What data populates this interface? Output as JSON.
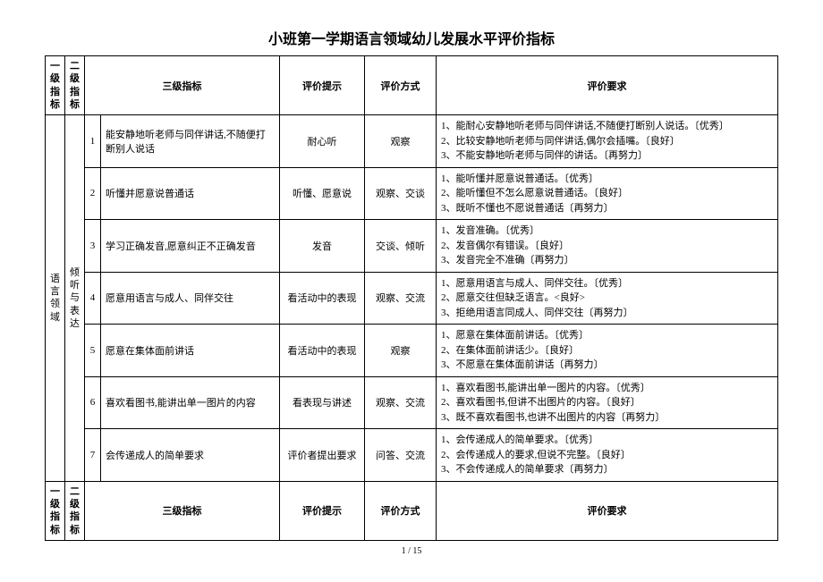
{
  "title": "小班第一学期语言领域幼儿发展水平评价指标",
  "header": {
    "l1": "一级指标",
    "l2": "二级指标",
    "l3": "三级指标",
    "hint": "评价提示",
    "method": "评价方式",
    "req": "评价要求"
  },
  "level1": "语言领域",
  "level2": "倾听与表达",
  "rows": [
    {
      "idx": "1",
      "l3": "能安静地听老师与同伴讲话,不随便打断别人说话",
      "hint": "耐心听",
      "method": "观察",
      "req": "1、能耐心安静地听老师与同伴讲话,不随便打断别人说话。〔优秀〕\n2、比较安静地听老师与同伴讲话,偶尔会插嘴。〔良好〕\n3、不能安静地听老师与同伴的讲话。〔再努力〕"
    },
    {
      "idx": "2",
      "l3": "听懂并愿意说普通话",
      "hint": "听懂、愿意说",
      "method": "观察、交谈",
      "req": "1、能听懂并愿意说普通话。〔优秀〕\n2、能听懂但不怎么愿意说普通话。〔良好〕\n3、既听不懂也不愿说普通话〔再努力〕"
    },
    {
      "idx": "3",
      "l3": "学习正确发音,愿意纠正不正确发音",
      "hint": "发音",
      "method": "交谈、倾听",
      "req": "1、发音准确。〔优秀〕\n2、发音偶尔有错误。〔良好〕\n3、发音完全不准确〔再努力〕"
    },
    {
      "idx": "4",
      "l3": "愿意用语言与成人、同伴交往",
      "hint": "看活动中的表现",
      "method": "观察、交流",
      "req": "1、愿意用语言与成人、同伴交往。〔优秀〕\n2、愿意交往但缺乏语言。<良好>\n3、拒绝用语言同成人、同伴交往〔再努力〕"
    },
    {
      "idx": "5",
      "l3": "愿意在集体面前讲话",
      "hint": "看活动中的表现",
      "method": "观察",
      "req": "1、愿意在集体面前讲话。〔优秀〕\n2、在集体面前讲话少。〔良好〕\n3、不愿意在集体面前讲话〔再努力〕"
    },
    {
      "idx": "6",
      "l3": "喜欢看图书,能讲出单一图片的内容",
      "hint": "看表现与讲述",
      "method": "观察、交流",
      "req": "1、喜欢看图书,能讲出单一图片的内容。〔优秀〕\n2、喜欢看图书,但讲不出图片的内容。〔良好〕\n3、既不喜欢看图书,也讲不出图片的内容〔再努力〕"
    },
    {
      "idx": "7",
      "l3": "会传递成人的简单要求",
      "hint": "评价者提出要求",
      "method": "问答、交流",
      "req": "1、会传递成人的简单要求。〔优秀〕\n2、会传递成人的要求,但说不完整。〔良好〕\n3、不会传递成人的简单要求〔再努力〕"
    }
  ],
  "pagenum": "1 / 15"
}
